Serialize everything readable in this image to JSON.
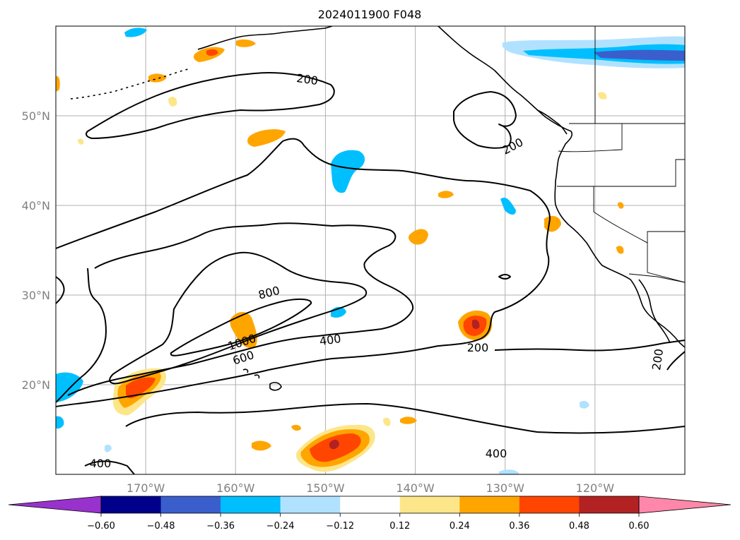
{
  "title": "2024011900 F048",
  "map": {
    "lon_range": [
      -180,
      -110
    ],
    "lat_range": [
      10,
      60
    ],
    "lat_ticks": [
      {
        "value": 50,
        "label": "50°N"
      },
      {
        "value": 40,
        "label": "40°N"
      },
      {
        "value": 30,
        "label": "30°N"
      },
      {
        "value": 20,
        "label": "20°N"
      }
    ],
    "lon_ticks": [
      {
        "value": -170,
        "label": "170°W"
      },
      {
        "value": -160,
        "label": "160°W"
      },
      {
        "value": -150,
        "label": "150°W"
      },
      {
        "value": -140,
        "label": "140°W"
      },
      {
        "value": -130,
        "label": "130°W"
      },
      {
        "value": -120,
        "label": "120°W"
      }
    ],
    "grid": true,
    "contour_labels": [
      "200",
      "200",
      "800",
      "1000",
      "600",
      "400",
      "200",
      "200",
      "400",
      "400"
    ]
  },
  "colorbar": {
    "extend": "both",
    "tick_labels": [
      "−0.60",
      "−0.48",
      "−0.36",
      "−0.24",
      "−0.12",
      "0.12",
      "0.24",
      "0.36",
      "0.48",
      "0.60"
    ],
    "colors": [
      "#9932cc",
      "#00008b",
      "#3a5fcd",
      "#00bfff",
      "#b0e2ff",
      "#ffffff",
      "#fde68a",
      "#ffa500",
      "#ff4500",
      "#b22222",
      "#ff88aa"
    ]
  }
}
